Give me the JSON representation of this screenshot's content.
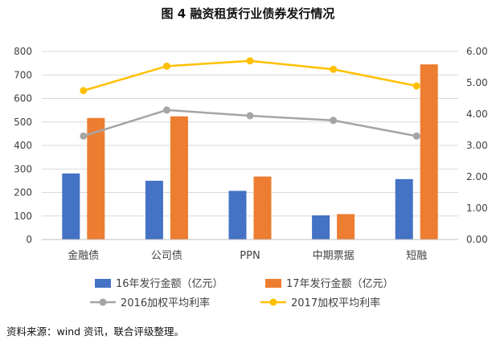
{
  "title": "图 4    融资租赁行业债券发行情况",
  "source": "资料来源：wind 资讯，联合评级整理。",
  "chart_data": {
    "type": "bar",
    "categories": [
      "金融债",
      "公司债",
      "PPN",
      "中期票据",
      "短融"
    ],
    "bar_series": [
      {
        "name": "16年发行金额（亿元）",
        "color": "#4472C4",
        "values": [
          281,
          250,
          207,
          103,
          257
        ]
      },
      {
        "name": "17年发行金额（亿元）",
        "color": "#ED7D31",
        "values": [
          517,
          524,
          268,
          108,
          745
        ]
      }
    ],
    "line_series": [
      {
        "name": "2016加权平均利率",
        "color": "#A5A5A5",
        "values": [
          3.3,
          4.13,
          3.95,
          3.8,
          3.3
        ]
      },
      {
        "name": "2017加权平均利率",
        "color": "#FFC000",
        "values": [
          4.75,
          5.53,
          5.7,
          5.43,
          4.9
        ]
      }
    ],
    "ylim": [
      0,
      800
    ],
    "yticks": [
      "0",
      "100",
      "200",
      "300",
      "400",
      "500",
      "600",
      "700",
      "800"
    ],
    "y2lim": [
      0,
      6
    ],
    "y2ticks": [
      "0.00",
      "1.00",
      "2.00",
      "3.00",
      "4.00",
      "5.00",
      "6.00"
    ],
    "grid": true,
    "legend_position": "bottom"
  }
}
